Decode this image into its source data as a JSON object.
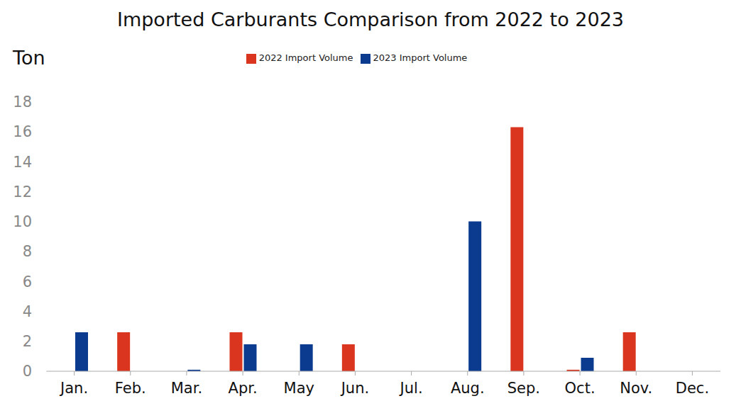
{
  "chart_data": {
    "type": "bar",
    "title": "Imported Carburants Comparison from 2022 to 2023",
    "y_label": "Ton",
    "categories": [
      "Jan.",
      "Feb.",
      "Mar.",
      "Apr.",
      "May",
      "Jun.",
      "Jul.",
      "Aug.",
      "Sep.",
      "Oct.",
      "Nov.",
      "Dec."
    ],
    "series": [
      {
        "name": "2022 Import Volume",
        "color": "#d9351f",
        "values": [
          0,
          2.6,
          0,
          2.6,
          0,
          1.8,
          0,
          0,
          16.3,
          0.1,
          2.6,
          0
        ]
      },
      {
        "name": "2023 Import Volume",
        "color": "#0b3b8f",
        "values": [
          2.6,
          0,
          0.1,
          1.8,
          1.8,
          0,
          0,
          10,
          0,
          0.9,
          0,
          0
        ]
      }
    ],
    "ylim": [
      0,
      18
    ],
    "yticks": [
      0,
      2,
      4,
      6,
      8,
      10,
      12,
      14,
      16,
      18
    ],
    "grid": false,
    "legend": "top"
  }
}
